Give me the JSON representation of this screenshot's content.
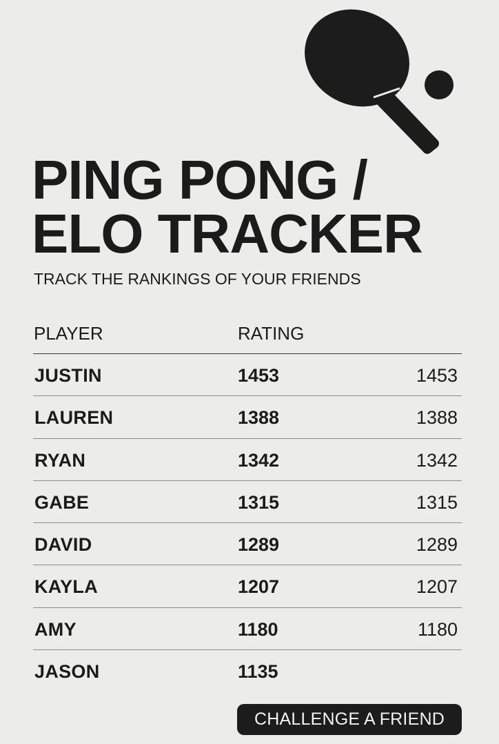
{
  "logo": {
    "icon": "ping-pong-paddle-icon",
    "color": "#1c1c1c"
  },
  "header": {
    "title_line1": "PING PONG /",
    "title_line2": "ELO TRACKER",
    "subtitle": "TRACK THE RANKINGS OF YOUR FRIENDS"
  },
  "table": {
    "col_player": "PLAYER",
    "col_rating": "RATING",
    "rows": [
      {
        "name": "JUSTIN",
        "rating": "1453",
        "rating_repeat": "1453"
      },
      {
        "name": "LAUREN",
        "rating": "1388",
        "rating_repeat": "1388"
      },
      {
        "name": "RYAN",
        "rating": "1342",
        "rating_repeat": "1342"
      },
      {
        "name": "GABE",
        "rating": "1315",
        "rating_repeat": "1315"
      },
      {
        "name": "DAVID",
        "rating": "1289",
        "rating_repeat": "1289"
      },
      {
        "name": "KAYLA",
        "rating": "1207",
        "rating_repeat": "1207"
      },
      {
        "name": "AMY",
        "rating": "1180",
        "rating_repeat": "1180"
      },
      {
        "name": "JASON",
        "rating": "1135",
        "rating_repeat": ""
      }
    ]
  },
  "cta": {
    "label": "CHALLENGE A FRIEND",
    "bg": "#1c1c1c"
  }
}
